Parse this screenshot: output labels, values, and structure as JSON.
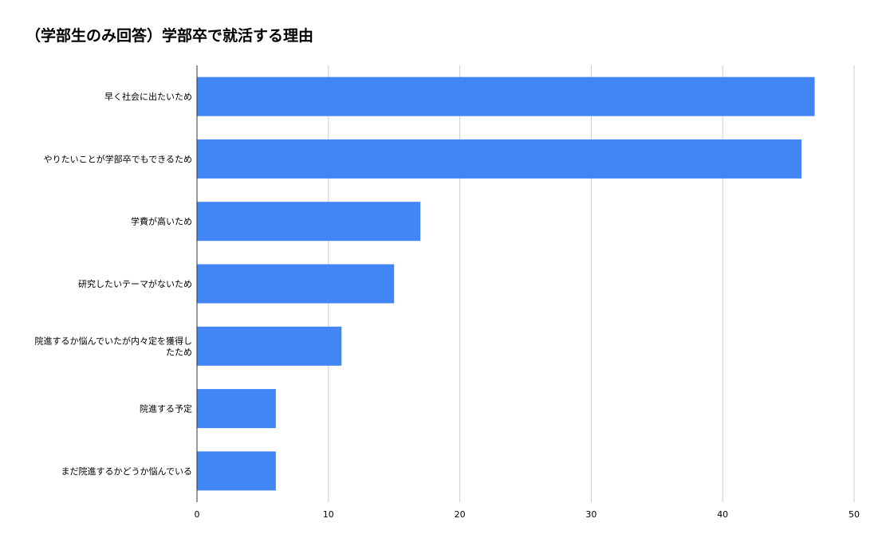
{
  "chart_data": {
    "type": "bar",
    "orientation": "horizontal",
    "title": "（学部生のみ回答）学部卒で就活する理由",
    "xlabel": "",
    "ylabel": "",
    "categories": [
      "早く社会に出たいため",
      "やりたいことが学部卒でもできるため",
      "学費が高いため",
      "研究したいテーマがないため",
      "院進するか悩んでいたが内々定を獲得したため",
      "院進する予定",
      "まだ院進するかどうか悩んでいる"
    ],
    "category_label_lines": [
      [
        "早く社会に出たいため"
      ],
      [
        "やりたいことが学部卒でもできるため"
      ],
      [
        "学費が高いため"
      ],
      [
        "研究したいテーマがないため"
      ],
      [
        "院進するか悩んでいたが内々定を獲得し",
        "たため"
      ],
      [
        "院進する予定"
      ],
      [
        "まだ院進するかどうか悩んでいる"
      ]
    ],
    "values": [
      47,
      46,
      17,
      15,
      11,
      6,
      6
    ],
    "xlim": [
      0,
      50
    ],
    "xticks": [
      0,
      10,
      20,
      30,
      40,
      50
    ],
    "grid": true,
    "legend": "none",
    "bar_color": "#4285f4",
    "grid_color": "#cccccc",
    "axis_color": "#333333"
  }
}
